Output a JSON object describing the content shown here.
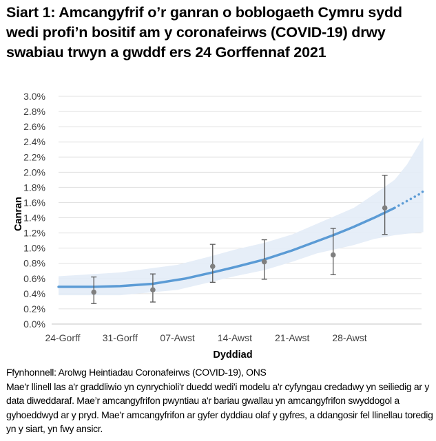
{
  "title": "Siart 1: Amcangyfrif o’r ganran o boblogaeth Cymru sydd wedi profi’n bositif am y coronafeirws (COVID-19) drwy swabiau trwyn a gwddf ers 24 Gorffennaf 2021",
  "notes": {
    "source": "Ffynhonnell: Arolwg Heintiadau Coronafeirws (COVID-19), ONS",
    "description": "Mae'r llinell las a'r graddliwio yn cynrychioli'r duedd wedi'i modelu a'r cyfyngau credadwy yn seiliedig ar y data diweddaraf. Mae’r amcangyfrifon pwyntiau a'r bariau gwallau yn amcangyfrifon swyddogol a gyhoeddwyd ar y pryd. Mae'r amcangyfrifon ar gyfer dyddiau olaf y gyfres, a ddangosir fel llinellau toredig yn y siart, yn fwy ansicr."
  },
  "colors": {
    "trend_line": "#5b9bd5",
    "credible_band": "#e3ecf7",
    "points": "#7f7f7f",
    "error_bars": "#595959",
    "gridlines": "#e0e0e0",
    "axis_line": "#d0d0d0"
  },
  "chart_data": {
    "type": "line",
    "title": "Siart 1: Amcangyfrif o’r ganran o boblogaeth Cymru sydd wedi profi’n bositif am y coronafeirws (COVID-19) drwy swabiau trwyn a gwddf ers 24 Gorffennaf 2021",
    "xlabel": "Dyddiad",
    "ylabel": "Canran",
    "x_tick_labels": [
      "24-Gorff",
      "31-Gorff",
      "07-Awst",
      "14-Awst",
      "21-Awst",
      "28-Awst"
    ],
    "x_tick_days": [
      0,
      7,
      14,
      21,
      28,
      35
    ],
    "x_range_days": [
      -0.5,
      44
    ],
    "y_tick_labels": [
      "0.0%",
      "0.2%",
      "0.4%",
      "0.6%",
      "0.8%",
      "1.0%",
      "1.2%",
      "1.4%",
      "1.6%",
      "1.8%",
      "2.0%",
      "2.2%",
      "2.4%",
      "2.6%",
      "2.8%",
      "3.0%"
    ],
    "ylim": [
      0,
      3.0
    ],
    "grid": true,
    "legend": "none",
    "series": [
      {
        "name": "Modelled trend (solid)",
        "style": "solid",
        "x_days": [
          -0.5,
          3.8,
          7,
          11,
          15,
          18.3,
          21,
          24.6,
          28,
          30,
          33,
          35.5,
          38,
          40.5
        ],
        "values": [
          0.49,
          0.49,
          0.5,
          0.53,
          0.6,
          0.68,
          0.75,
          0.85,
          0.97,
          1.05,
          1.17,
          1.28,
          1.4,
          1.53
        ]
      },
      {
        "name": "Modelled trend (dotted, less certain)",
        "style": "dotted",
        "x_days": [
          40.5,
          42,
          43.5,
          44
        ],
        "values": [
          1.53,
          1.62,
          1.71,
          1.75
        ]
      },
      {
        "name": "Credible interval",
        "style": "band",
        "x_days": [
          -0.5,
          7,
          14,
          18.3,
          21,
          24.6,
          28,
          31,
          35.5,
          38,
          40.5,
          42,
          44
        ],
        "lower": [
          0.38,
          0.38,
          0.45,
          0.56,
          0.63,
          0.71,
          0.82,
          0.93,
          1.04,
          1.12,
          1.17,
          1.19,
          1.21
        ],
        "upper": [
          0.63,
          0.68,
          0.78,
          0.9,
          0.98,
          1.07,
          1.18,
          1.32,
          1.53,
          1.71,
          1.9,
          2.1,
          2.46
        ]
      },
      {
        "name": "Official estimates",
        "style": "points_with_error_bars",
        "x_days": [
          3.8,
          11.0,
          18.3,
          24.6,
          33.0,
          39.3
        ],
        "values": [
          0.42,
          0.45,
          0.76,
          0.82,
          0.91,
          1.53
        ],
        "lower": [
          0.27,
          0.29,
          0.55,
          0.59,
          0.65,
          1.18
        ],
        "upper": [
          0.62,
          0.66,
          1.05,
          1.11,
          1.26,
          1.96
        ]
      }
    ]
  }
}
